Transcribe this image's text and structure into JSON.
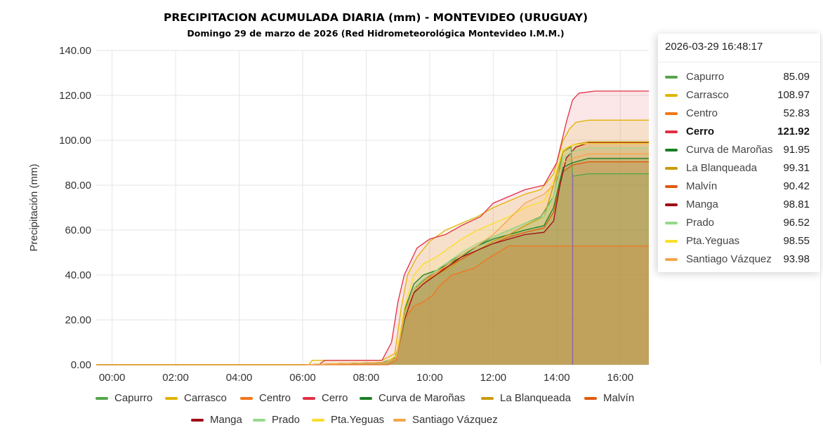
{
  "chart_data": {
    "type": "area",
    "title": "PRECIPITACION ACUMULADA DIARIA (mm)  - MONTEVIDEO (URUGUAY)",
    "subtitle": "Domingo 29 de marzo de 2026  (Red Hidrometeorológica Montevideo I.M.M.)",
    "ylabel": "Precipitación (mm)",
    "xlabel": "",
    "xlim": [
      "-0.5",
      "16.9"
    ],
    "x_unit": "hours",
    "ylim": [
      0,
      140
    ],
    "yticks": [
      "0.00",
      "20.00",
      "40.00",
      "60.00",
      "80.00",
      "100.00",
      "120.00",
      "140.00"
    ],
    "xticks": [
      "00:00",
      "02:00",
      "04:00",
      "06:00",
      "08:00",
      "10:00",
      "12:00",
      "14:00",
      "16:00"
    ],
    "grid": true,
    "legend_position": "bottom",
    "series": [
      {
        "name": "Capurro",
        "color": "#56a64b",
        "points": [
          [
            -0.5,
            0
          ],
          [
            6.0,
            0
          ],
          [
            8.5,
            1
          ],
          [
            8.9,
            3
          ],
          [
            9.1,
            12
          ],
          [
            9.3,
            25
          ],
          [
            9.6,
            35
          ],
          [
            10.0,
            40
          ],
          [
            10.5,
            45
          ],
          [
            11.0,
            49
          ],
          [
            11.5,
            53
          ],
          [
            12.0,
            57
          ],
          [
            12.5,
            60
          ],
          [
            13.0,
            63
          ],
          [
            13.5,
            66
          ],
          [
            13.9,
            75
          ],
          [
            14.2,
            95
          ],
          [
            14.45,
            97
          ],
          [
            14.5,
            84
          ],
          [
            15.0,
            85.09
          ],
          [
            16.9,
            85.09
          ]
        ]
      },
      {
        "name": "Carrasco",
        "color": "#e0b400",
        "points": [
          [
            -0.5,
            0
          ],
          [
            6.2,
            0
          ],
          [
            6.3,
            2
          ],
          [
            8.5,
            2
          ],
          [
            8.9,
            5
          ],
          [
            9.1,
            25
          ],
          [
            9.3,
            40
          ],
          [
            9.6,
            48
          ],
          [
            10.0,
            55
          ],
          [
            10.5,
            60
          ],
          [
            11.0,
            63
          ],
          [
            11.5,
            66
          ],
          [
            12.0,
            70
          ],
          [
            12.5,
            73
          ],
          [
            13.0,
            76
          ],
          [
            13.5,
            78
          ],
          [
            13.9,
            85
          ],
          [
            14.2,
            100
          ],
          [
            14.4,
            105
          ],
          [
            14.6,
            108
          ],
          [
            15.0,
            108.97
          ],
          [
            16.9,
            108.97
          ]
        ]
      },
      {
        "name": "Centro",
        "color": "#f2761a",
        "points": [
          [
            -0.5,
            0
          ],
          [
            6.0,
            0
          ],
          [
            8.7,
            0
          ],
          [
            8.95,
            2
          ],
          [
            9.2,
            20
          ],
          [
            9.5,
            26
          ],
          [
            9.8,
            28
          ],
          [
            10.1,
            31
          ],
          [
            10.3,
            35
          ],
          [
            10.7,
            40
          ],
          [
            11.4,
            43
          ],
          [
            11.8,
            47
          ],
          [
            12.5,
            53
          ],
          [
            13.0,
            52.83
          ],
          [
            16.9,
            52.83
          ]
        ]
      },
      {
        "name": "Cerro",
        "color": "#e02f44",
        "points": [
          [
            -0.5,
            0
          ],
          [
            6.5,
            0
          ],
          [
            6.7,
            2
          ],
          [
            8.5,
            2
          ],
          [
            8.8,
            10
          ],
          [
            9.0,
            28
          ],
          [
            9.2,
            40
          ],
          [
            9.6,
            52
          ],
          [
            10.0,
            56
          ],
          [
            10.5,
            58
          ],
          [
            11.0,
            62
          ],
          [
            11.6,
            66
          ],
          [
            12.0,
            72
          ],
          [
            12.5,
            75
          ],
          [
            13.0,
            78
          ],
          [
            13.6,
            80
          ],
          [
            14.0,
            90
          ],
          [
            14.3,
            108
          ],
          [
            14.5,
            118
          ],
          [
            14.7,
            121
          ],
          [
            15.2,
            121.92
          ],
          [
            16.9,
            121.92
          ]
        ]
      },
      {
        "name": "Curva de Maroñas",
        "color": "#1a7f24",
        "points": [
          [
            -0.5,
            0
          ],
          [
            6.0,
            0
          ],
          [
            8.6,
            1
          ],
          [
            8.95,
            4
          ],
          [
            9.2,
            24
          ],
          [
            9.5,
            36
          ],
          [
            9.8,
            40
          ],
          [
            10.2,
            42
          ],
          [
            10.6,
            45
          ],
          [
            11.0,
            48
          ],
          [
            11.5,
            53
          ],
          [
            12.0,
            56
          ],
          [
            12.5,
            58
          ],
          [
            13.0,
            60
          ],
          [
            13.6,
            62
          ],
          [
            13.9,
            70
          ],
          [
            14.2,
            88
          ],
          [
            14.5,
            90
          ],
          [
            15.0,
            91.95
          ],
          [
            16.9,
            91.95
          ]
        ]
      },
      {
        "name": "La Blanqueada",
        "color": "#c89c0a",
        "points": [
          [
            -0.5,
            0
          ],
          [
            6.0,
            0
          ],
          [
            8.6,
            1
          ],
          [
            8.95,
            3
          ],
          [
            9.2,
            20
          ],
          [
            9.5,
            33
          ],
          [
            9.8,
            37
          ],
          [
            10.2,
            40
          ],
          [
            10.6,
            43
          ],
          [
            11.0,
            47
          ],
          [
            11.5,
            51
          ],
          [
            12.0,
            55
          ],
          [
            12.5,
            58
          ],
          [
            13.0,
            62
          ],
          [
            13.6,
            66
          ],
          [
            13.9,
            80
          ],
          [
            14.2,
            95
          ],
          [
            14.5,
            98
          ],
          [
            15.0,
            99.31
          ],
          [
            16.9,
            99.31
          ]
        ]
      },
      {
        "name": "Malvín",
        "color": "#e05a0c",
        "points": [
          [
            -0.5,
            0
          ],
          [
            6.0,
            0
          ],
          [
            8.6,
            1
          ],
          [
            8.95,
            3
          ],
          [
            9.2,
            22
          ],
          [
            9.5,
            34
          ],
          [
            9.8,
            38
          ],
          [
            10.2,
            41
          ],
          [
            10.6,
            44
          ],
          [
            11.0,
            47
          ],
          [
            11.5,
            51
          ],
          [
            12.0,
            54
          ],
          [
            12.5,
            57
          ],
          [
            13.0,
            59
          ],
          [
            13.6,
            61
          ],
          [
            13.9,
            68
          ],
          [
            14.2,
            86
          ],
          [
            14.5,
            89
          ],
          [
            15.0,
            90.42
          ],
          [
            16.9,
            90.42
          ]
        ]
      },
      {
        "name": "Manga",
        "color": "#a00a18",
        "points": [
          [
            -0.5,
            0
          ],
          [
            6.0,
            0
          ],
          [
            8.6,
            1
          ],
          [
            8.95,
            3
          ],
          [
            9.2,
            20
          ],
          [
            9.5,
            32
          ],
          [
            9.8,
            36
          ],
          [
            10.2,
            40
          ],
          [
            10.6,
            44
          ],
          [
            11.0,
            48
          ],
          [
            11.5,
            51
          ],
          [
            12.0,
            54
          ],
          [
            12.5,
            56
          ],
          [
            13.0,
            58
          ],
          [
            13.6,
            59
          ],
          [
            13.9,
            64
          ],
          [
            14.1,
            80
          ],
          [
            14.3,
            92
          ],
          [
            14.6,
            97
          ],
          [
            15.0,
            98.81
          ],
          [
            16.9,
            98.81
          ]
        ]
      },
      {
        "name": "Prado",
        "color": "#96d98d",
        "points": [
          [
            -0.5,
            0
          ],
          [
            6.0,
            0
          ],
          [
            8.6,
            1
          ],
          [
            8.95,
            3
          ],
          [
            9.2,
            21
          ],
          [
            9.5,
            34
          ],
          [
            9.8,
            38
          ],
          [
            10.2,
            42
          ],
          [
            10.6,
            46
          ],
          [
            11.0,
            50
          ],
          [
            11.5,
            54
          ],
          [
            12.0,
            57
          ],
          [
            12.5,
            60
          ],
          [
            13.0,
            63
          ],
          [
            13.6,
            66
          ],
          [
            13.9,
            75
          ],
          [
            14.2,
            92
          ],
          [
            14.5,
            95
          ],
          [
            15.0,
            96.52
          ],
          [
            16.9,
            96.52
          ]
        ]
      },
      {
        "name": "Pta.Yeguas",
        "color": "#fade2a",
        "points": [
          [
            -0.5,
            0
          ],
          [
            6.0,
            0
          ],
          [
            8.6,
            1
          ],
          [
            8.95,
            4
          ],
          [
            9.2,
            25
          ],
          [
            9.5,
            40
          ],
          [
            9.8,
            45
          ],
          [
            10.2,
            48
          ],
          [
            10.6,
            52
          ],
          [
            11.0,
            56
          ],
          [
            11.5,
            60
          ],
          [
            12.0,
            63
          ],
          [
            12.5,
            66
          ],
          [
            13.0,
            70
          ],
          [
            13.6,
            73
          ],
          [
            13.9,
            82
          ],
          [
            14.2,
            96
          ],
          [
            14.5,
            98
          ],
          [
            15.0,
            98.55
          ],
          [
            16.9,
            98.55
          ]
        ]
      },
      {
        "name": "Santiago Vázquez",
        "color": "#f4a64a",
        "points": [
          [
            -0.5,
            0
          ],
          [
            6.0,
            0
          ],
          [
            8.6,
            1
          ],
          [
            8.95,
            3
          ],
          [
            9.2,
            22
          ],
          [
            9.5,
            33
          ],
          [
            9.8,
            37
          ],
          [
            10.2,
            41
          ],
          [
            10.6,
            45
          ],
          [
            11.0,
            49
          ],
          [
            11.5,
            53
          ],
          [
            12.0,
            58
          ],
          [
            12.5,
            65
          ],
          [
            13.0,
            72
          ],
          [
            13.6,
            76
          ],
          [
            13.9,
            80
          ],
          [
            14.2,
            90
          ],
          [
            14.5,
            92
          ],
          [
            15.0,
            93.98
          ],
          [
            16.9,
            93.98
          ]
        ]
      }
    ]
  },
  "tooltip": {
    "time": "2026-03-29 16:48:17",
    "highlighted": "Cerro",
    "rows": [
      {
        "name": "Capurro",
        "value": "85.09"
      },
      {
        "name": "Carrasco",
        "value": "108.97"
      },
      {
        "name": "Centro",
        "value": "52.83"
      },
      {
        "name": "Cerro",
        "value": "121.92"
      },
      {
        "name": "Curva de Maroñas",
        "value": "91.95"
      },
      {
        "name": "La Blanqueada",
        "value": "99.31"
      },
      {
        "name": "Malvín",
        "value": "90.42"
      },
      {
        "name": "Manga",
        "value": "98.81"
      },
      {
        "name": "Prado",
        "value": "96.52"
      },
      {
        "name": "Pta.Yeguas",
        "value": "98.55"
      },
      {
        "name": "Santiago Vázquez",
        "value": "93.98"
      }
    ]
  }
}
